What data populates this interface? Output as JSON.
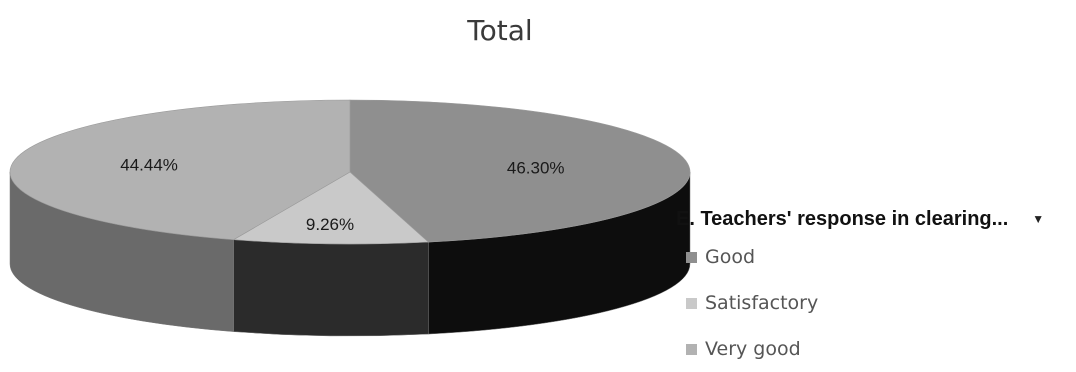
{
  "chart_data": {
    "type": "pie",
    "title": "Total",
    "filter_label": "E. Teachers' response in clearing...",
    "categories": [
      "Good",
      "Satisfactory",
      "Very good"
    ],
    "values": [
      46.3,
      9.26,
      44.44
    ],
    "data_labels": [
      "46.30%",
      "9.26%",
      "44.44%"
    ],
    "legend_placement": "right",
    "three_d": true,
    "colors": {
      "Good": "#8f8f8f",
      "Satisfactory": "#c9c9c9",
      "Very good": "#b2b2b2",
      "Good_side": "#0d0d0d",
      "Satisfactory_side": "#2b2b2b",
      "Very good_side": "#6a6a6a"
    }
  },
  "legend": {
    "dropdown_icon": "triangle-down-icon"
  }
}
